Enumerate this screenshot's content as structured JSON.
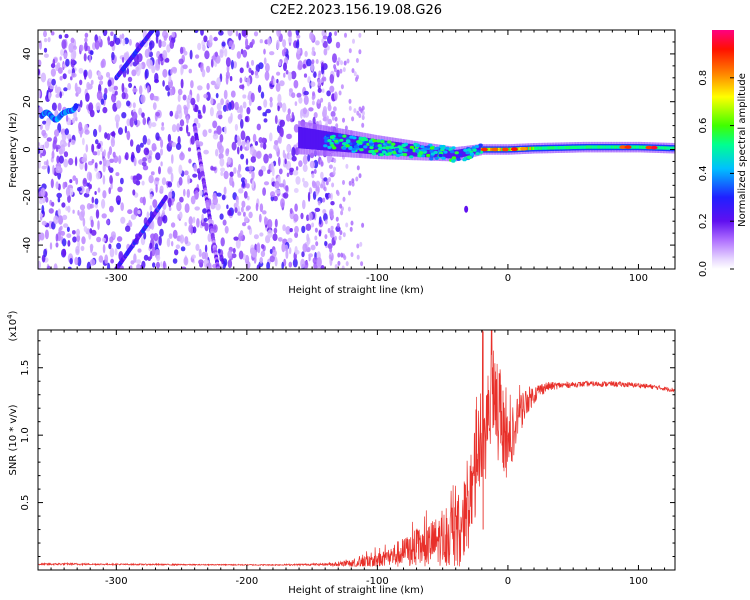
{
  "title": "C2E2.2023.156.19.08.G26",
  "chart_data": [
    {
      "type": "heatmap",
      "xlabel": "Height of straight line (km)",
      "ylabel": "Frequency (Hz)",
      "xlim": [
        -360,
        128
      ],
      "ylim": [
        -50,
        50
      ],
      "xticks": [
        -300,
        -200,
        -100,
        0,
        100
      ],
      "yticks": [
        -40,
        -20,
        0,
        20,
        40
      ],
      "colorbar": {
        "label": "Normalized spectral amplitude",
        "range": [
          0,
          1
        ],
        "ticks": [
          0.0,
          0.2,
          0.4,
          0.6,
          0.8
        ],
        "colors": [
          "#ffffff",
          "#d8b8f8",
          "#8a2be2",
          "#4000ff",
          "#0060ff",
          "#00d0ff",
          "#00ff80",
          "#a0ff00",
          "#ffff00",
          "#ff8000",
          "#ff0000",
          "#ff0080"
        ]
      },
      "features": [
        {
          "name": "dispersed noise",
          "height_range_km": [
            -360,
            -140
          ],
          "freq_range_hz": [
            -50,
            50
          ],
          "amplitude": 0.15
        },
        {
          "name": "linear streak 1",
          "from": [
            -300,
            -50
          ],
          "to": [
            -262,
            -20
          ],
          "amplitude": 0.25
        },
        {
          "name": "linear streak 2",
          "from": [
            -300,
            30
          ],
          "to": [
            -272,
            50
          ],
          "amplitude": 0.25
        },
        {
          "name": "linear streak 3",
          "from": [
            -240,
            10
          ],
          "to": [
            -222,
            -50
          ],
          "amplitude": 0.15
        },
        {
          "name": "low-frequency blob",
          "height_km": -345,
          "freq_hz": 14,
          "amplitude": 0.3
        },
        {
          "name": "main signal trace",
          "x": [
            -160,
            -130,
            -100,
            -80,
            -60,
            -40,
            -20,
            0,
            20,
            60,
            100,
            128
          ],
          "y": [
            5,
            3,
            1,
            0,
            -1,
            -2,
            0,
            0,
            0.5,
            1,
            1,
            0.5
          ],
          "amplitude": 0.85
        },
        {
          "name": "isolated spot",
          "height_km": -32,
          "freq_hz": -25,
          "amplitude": 0.2
        }
      ]
    },
    {
      "type": "line",
      "xlabel": "Height of straight line (km)",
      "ylabel": "SNR (10 * v/v)",
      "exponent_label": "(x10",
      "exponent_power": "4",
      "exponent_close": ")",
      "xlim": [
        -360,
        128
      ],
      "ylim": [
        0,
        17800
      ],
      "xticks": [
        -300,
        -200,
        -100,
        0,
        100
      ],
      "yticks": [
        0.5,
        1.0,
        1.5
      ],
      "series": [
        {
          "name": "SNR",
          "color": "#e8302a",
          "x": [
            -360,
            -340,
            -320,
            -300,
            -280,
            -260,
            -240,
            -220,
            -200,
            -180,
            -160,
            -140,
            -120,
            -100,
            -90,
            -80,
            -70,
            -60,
            -50,
            -40,
            -35,
            -30,
            -25,
            -22,
            -20,
            -18,
            -15,
            -10,
            -5,
            0,
            5,
            10,
            15,
            20,
            25,
            30,
            40,
            50,
            60,
            70,
            80,
            90,
            100,
            110,
            120,
            128
          ],
          "y": [
            420,
            440,
            430,
            420,
            410,
            400,
            390,
            390,
            380,
            380,
            400,
            420,
            480,
            750,
            1000,
            1300,
            1600,
            1900,
            2300,
            2700,
            3400,
            4800,
            7000,
            9500,
            11500,
            10500,
            12000,
            13000,
            11500,
            9000,
            10500,
            11800,
            12600,
            13000,
            13400,
            13600,
            13700,
            13750,
            13800,
            13800,
            13800,
            13750,
            13700,
            13600,
            13450,
            13350
          ],
          "noise_amplitude": [
            60,
            80,
            60,
            50,
            50,
            50,
            40,
            40,
            40,
            40,
            60,
            90,
            300,
            700,
            900,
            1100,
            1400,
            1700,
            2000,
            2500,
            2800,
            3200,
            3500,
            4500,
            5000,
            4800,
            4000,
            3500,
            3000,
            2500,
            2000,
            1500,
            1000,
            700,
            500,
            350,
            250,
            200,
            200,
            200,
            200,
            200,
            180,
            180,
            160,
            160
          ]
        }
      ]
    }
  ]
}
